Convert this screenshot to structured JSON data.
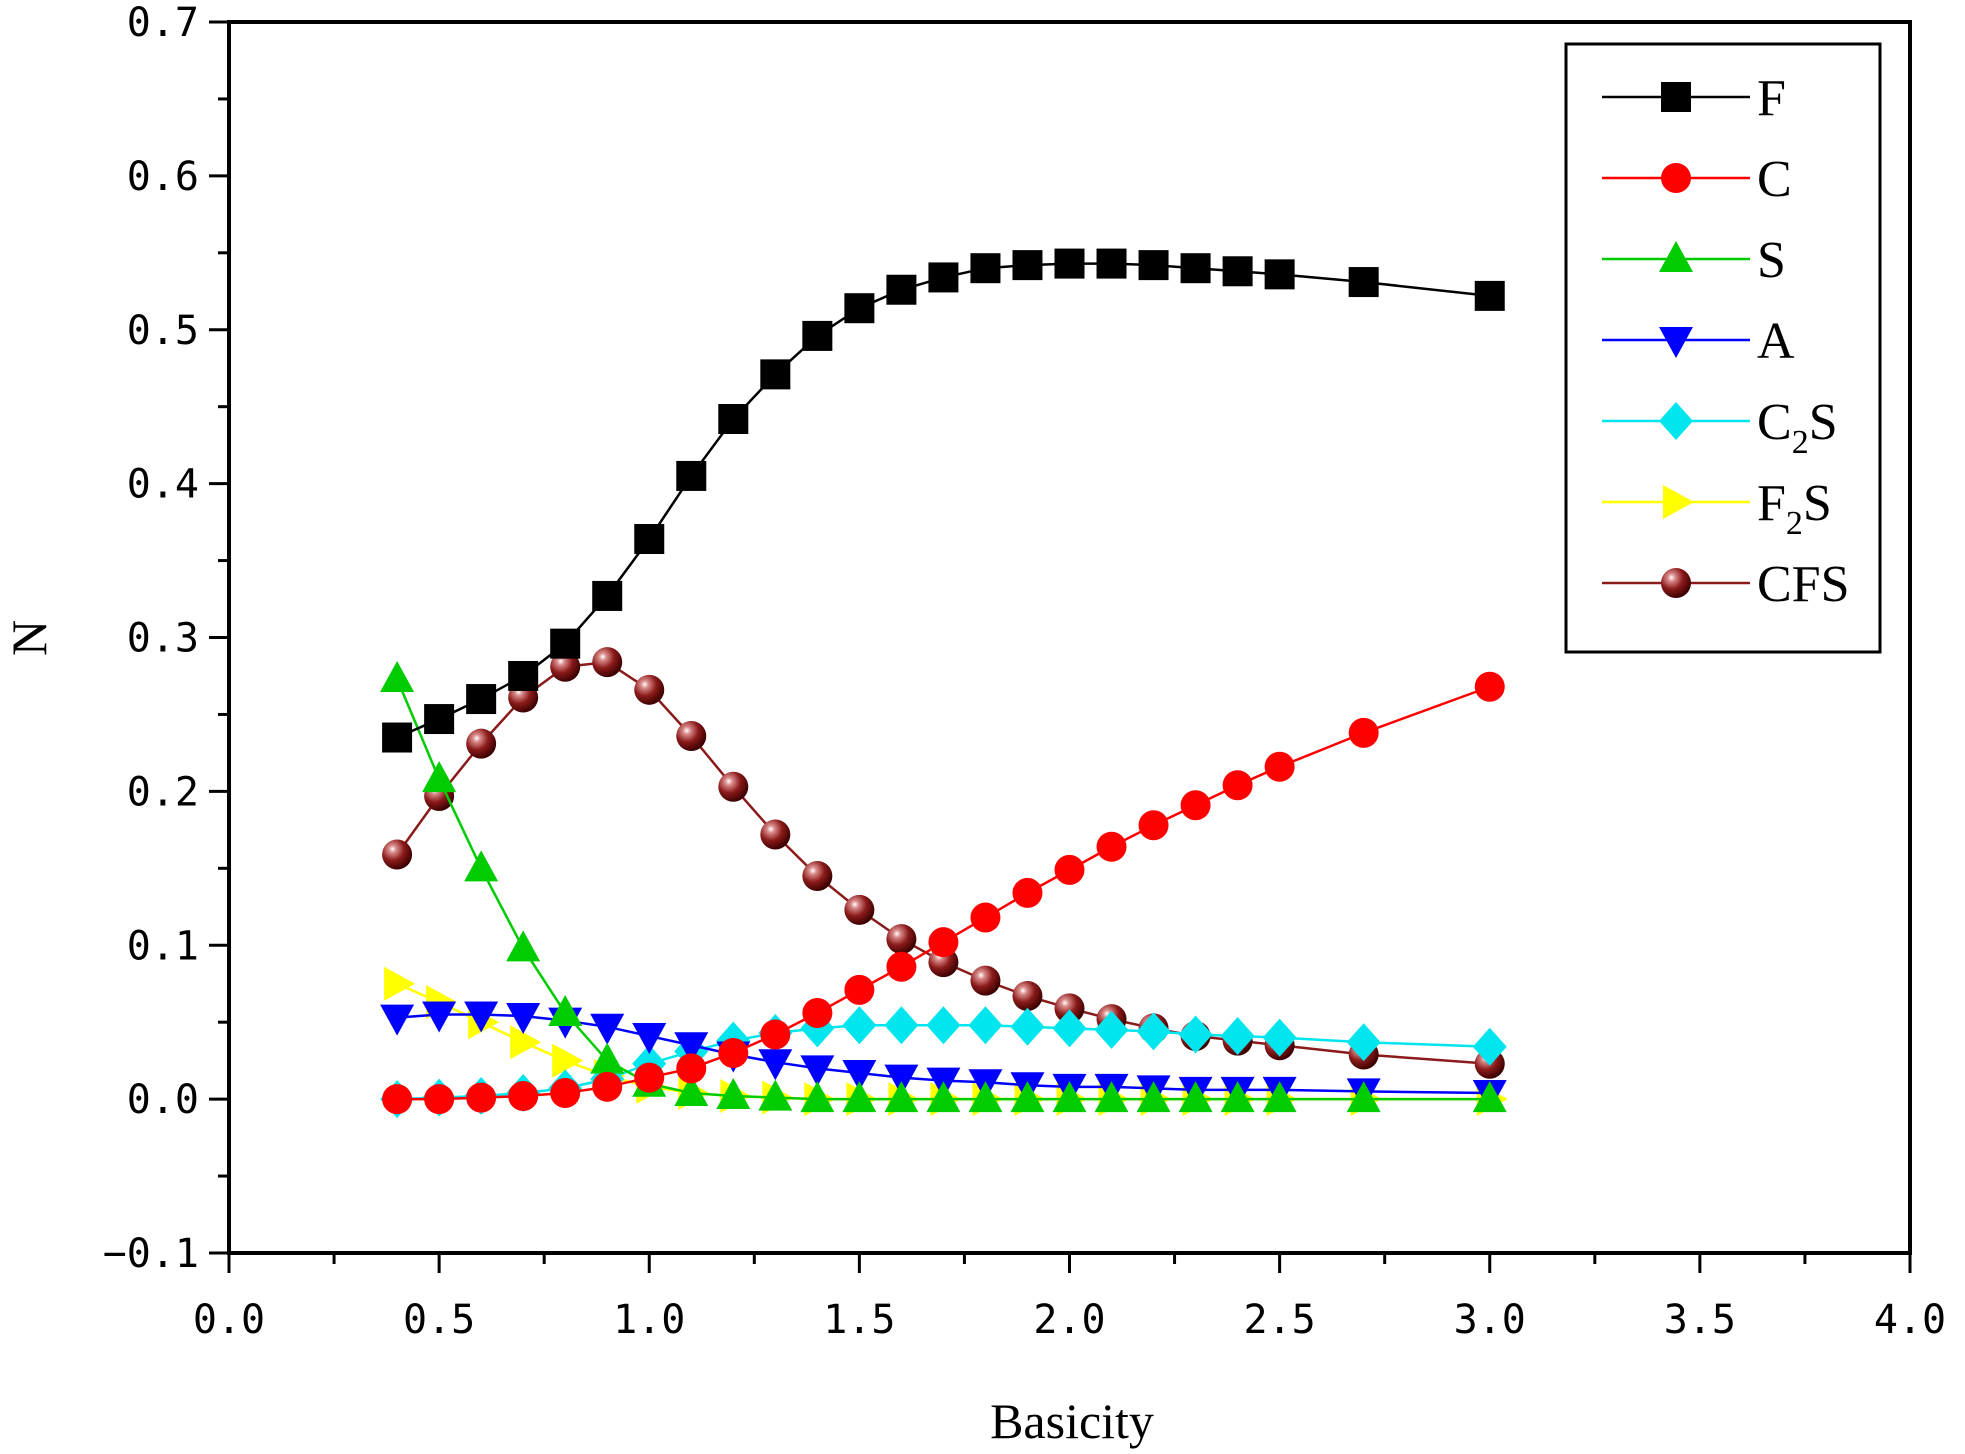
{
  "chart_data": {
    "type": "line",
    "title": "",
    "xlabel": "Basicity",
    "ylabel": "N",
    "xlim": [
      0.0,
      4.0
    ],
    "ylim": [
      -0.1,
      0.7
    ],
    "x_ticks": [
      "0.0",
      "0.5",
      "1.0",
      "1.5",
      "2.0",
      "2.5",
      "3.0",
      "3.5",
      "4.0"
    ],
    "y_ticks": [
      "-0.1",
      "0.0",
      "0.1",
      "0.2",
      "0.3",
      "0.4",
      "0.5",
      "0.6",
      "0.7"
    ],
    "grid": false,
    "legend_position": "top-right",
    "x": [
      0.4,
      0.5,
      0.6,
      0.7,
      0.8,
      0.9,
      1.0,
      1.1,
      1.2,
      1.3,
      1.4,
      1.5,
      1.6,
      1.7,
      1.8,
      1.9,
      2.0,
      2.1,
      2.2,
      2.3,
      2.4,
      2.5,
      2.7,
      3.0
    ],
    "series": [
      {
        "name": "F",
        "legend_main": "F",
        "legend_sub": "",
        "legend_tail": "",
        "color": "#000000",
        "marker": "square",
        "values": [
          0.235,
          0.247,
          0.26,
          0.275,
          0.296,
          0.327,
          0.364,
          0.405,
          0.442,
          0.471,
          0.496,
          0.514,
          0.526,
          0.534,
          0.54,
          0.542,
          0.543,
          0.543,
          0.542,
          0.54,
          0.538,
          0.536,
          0.531,
          0.522
        ]
      },
      {
        "name": "C",
        "legend_main": "C",
        "legend_sub": "",
        "legend_tail": "",
        "color": "#ff0000",
        "marker": "circle",
        "values": [
          0.0,
          0.0,
          0.001,
          0.002,
          0.004,
          0.008,
          0.014,
          0.02,
          0.03,
          0.042,
          0.056,
          0.071,
          0.086,
          0.102,
          0.118,
          0.134,
          0.149,
          0.164,
          0.178,
          0.191,
          0.204,
          0.216,
          0.238,
          0.268
        ]
      },
      {
        "name": "S",
        "legend_main": "S",
        "legend_sub": "",
        "legend_tail": "",
        "color": "#00cc00",
        "marker": "triangle-up",
        "values": [
          0.273,
          0.208,
          0.15,
          0.098,
          0.056,
          0.025,
          0.01,
          0.004,
          0.002,
          0.001,
          0.0,
          0.0,
          0.0,
          0.0,
          0.0,
          0.0,
          0.0,
          0.0,
          0.0,
          0.0,
          0.0,
          0.0,
          0.0,
          0.0
        ]
      },
      {
        "name": "A",
        "legend_main": "A",
        "legend_sub": "",
        "legend_tail": "",
        "color": "#0000ff",
        "marker": "triangle-down",
        "values": [
          0.053,
          0.055,
          0.055,
          0.054,
          0.051,
          0.047,
          0.041,
          0.035,
          0.029,
          0.024,
          0.02,
          0.017,
          0.014,
          0.012,
          0.011,
          0.009,
          0.008,
          0.008,
          0.007,
          0.006,
          0.006,
          0.006,
          0.005,
          0.004
        ]
      },
      {
        "name": "C2S",
        "legend_main": "C",
        "legend_sub": "2",
        "legend_tail": "S",
        "color": "#00e5ee",
        "marker": "diamond",
        "values": [
          0.0,
          0.001,
          0.002,
          0.004,
          0.007,
          0.013,
          0.023,
          0.031,
          0.038,
          0.043,
          0.046,
          0.048,
          0.048,
          0.048,
          0.048,
          0.047,
          0.046,
          0.045,
          0.044,
          0.042,
          0.041,
          0.04,
          0.037,
          0.034
        ]
      },
      {
        "name": "F2S",
        "legend_main": "F",
        "legend_sub": "2",
        "legend_tail": "S",
        "color": "#ffff00",
        "marker": "triangle-right",
        "values": [
          0.075,
          0.063,
          0.05,
          0.037,
          0.025,
          0.015,
          0.008,
          0.004,
          0.002,
          0.001,
          0.0,
          0.0,
          0.0,
          0.0,
          0.0,
          0.0,
          0.0,
          0.0,
          0.0,
          0.0,
          0.0,
          0.0,
          0.0,
          0.0
        ]
      },
      {
        "name": "CFS",
        "legend_main": "CFS",
        "legend_sub": "",
        "legend_tail": "",
        "color": "#8b1a1a",
        "marker": "sphere",
        "values": [
          0.159,
          0.197,
          0.231,
          0.261,
          0.281,
          0.284,
          0.266,
          0.236,
          0.203,
          0.172,
          0.145,
          0.123,
          0.104,
          0.089,
          0.077,
          0.067,
          0.059,
          0.052,
          0.046,
          0.041,
          0.038,
          0.035,
          0.029,
          0.023
        ]
      }
    ]
  }
}
